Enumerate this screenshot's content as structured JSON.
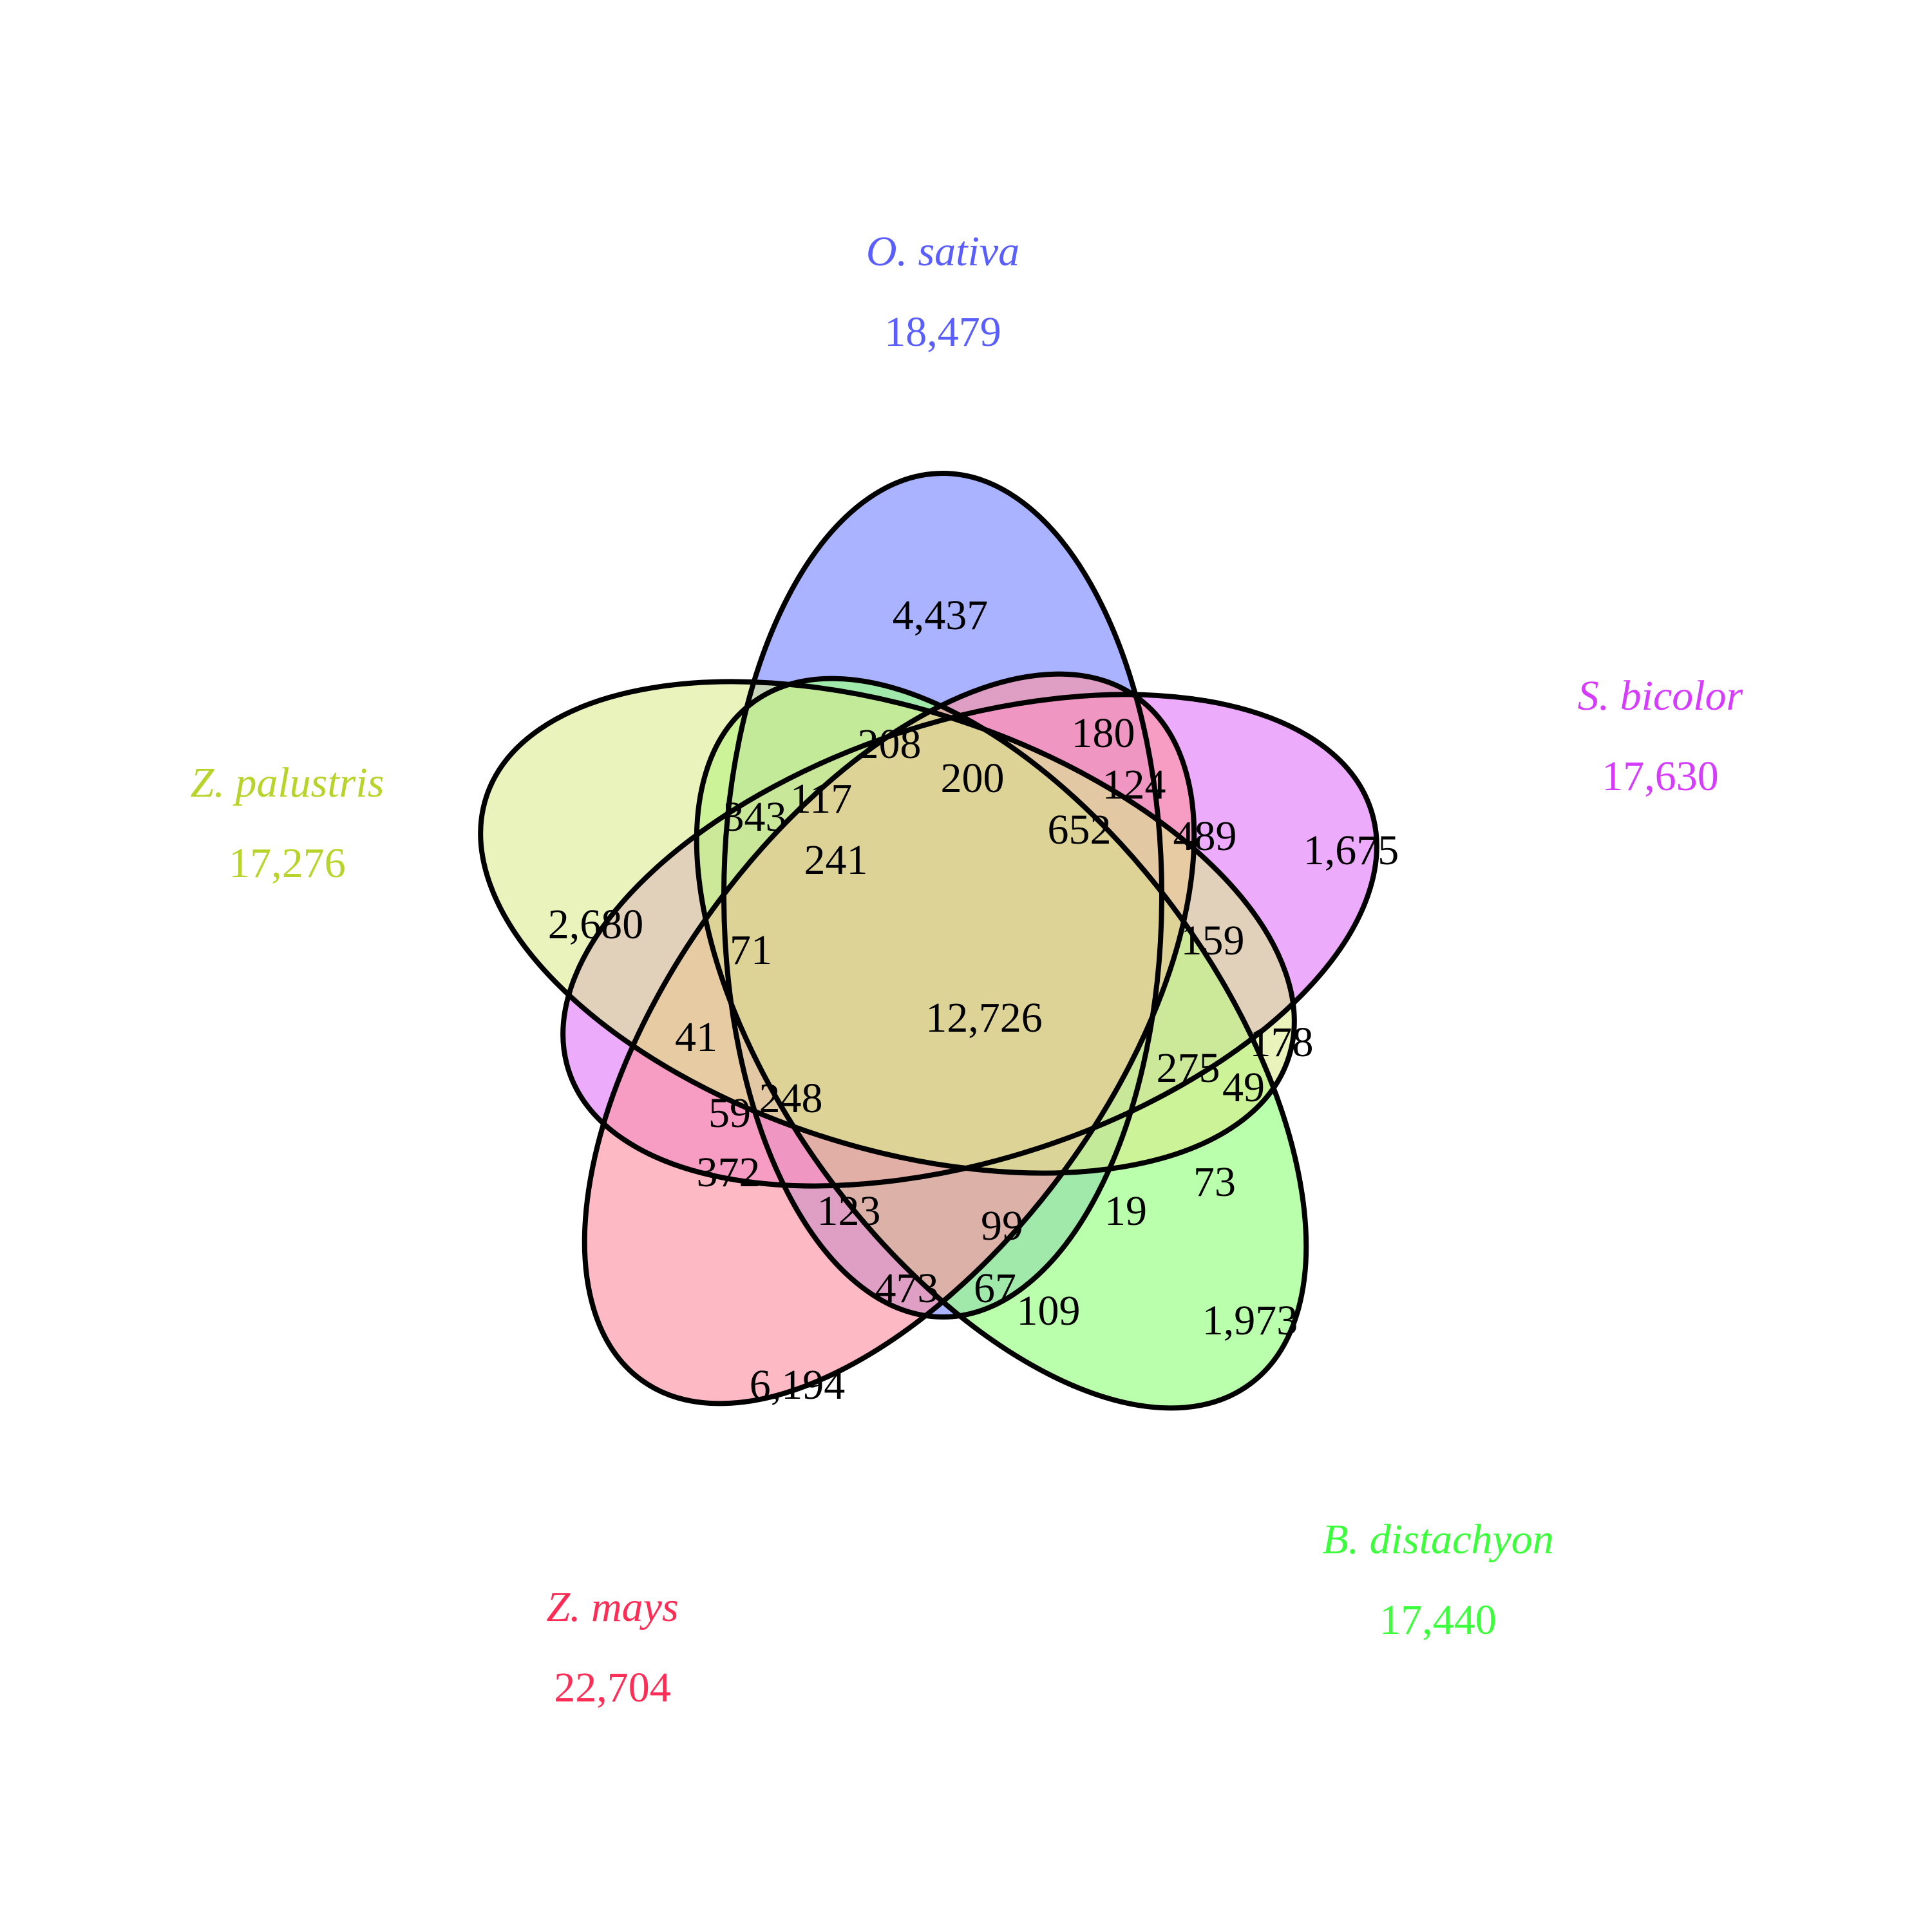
{
  "sets": [
    {
      "id": "osativa",
      "name": "O. sativa",
      "total": "18,479",
      "color": "#5a5eff"
    },
    {
      "id": "sbicolor",
      "name": "S. bicolor",
      "total": "17,630",
      "color": "#d63cff"
    },
    {
      "id": "bdistachyon",
      "name": "B. distachyon",
      "total": "17,440",
      "color": "#3cff3c"
    },
    {
      "id": "zmays",
      "name": "Z. mays",
      "total": "22,704",
      "color": "#ff2d55"
    },
    {
      "id": "zpalustris",
      "name": "Z. palustris",
      "total": "17,276",
      "color": "#b8d42a"
    }
  ],
  "fills": {
    "osativa": "#aab3ff",
    "sbicolor": "#e894fb",
    "bdistachyon": "#9cff88",
    "zmays": "#fc93a5",
    "zpalustris": "#dbeb8d"
  },
  "regions": [
    {
      "id": "osativa-only",
      "value": "4,437"
    },
    {
      "id": "sbicolor-only",
      "value": "1,675"
    },
    {
      "id": "bdistachyon-only",
      "value": "1,973"
    },
    {
      "id": "zmays-only",
      "value": "6,194"
    },
    {
      "id": "zpalustris-only",
      "value": "2,680"
    },
    {
      "id": "all-five",
      "value": "12,726"
    },
    {
      "id": "r-208",
      "value": "208"
    },
    {
      "id": "r-180",
      "value": "180"
    },
    {
      "id": "r-200",
      "value": "200"
    },
    {
      "id": "r-124",
      "value": "124"
    },
    {
      "id": "r-343",
      "value": "343"
    },
    {
      "id": "r-117",
      "value": "117"
    },
    {
      "id": "r-652",
      "value": "652"
    },
    {
      "id": "r-489",
      "value": "489"
    },
    {
      "id": "r-241",
      "value": "241"
    },
    {
      "id": "r-71",
      "value": "71"
    },
    {
      "id": "r-159",
      "value": "159"
    },
    {
      "id": "r-41",
      "value": "41"
    },
    {
      "id": "r-178",
      "value": "178"
    },
    {
      "id": "r-275",
      "value": "275"
    },
    {
      "id": "r-49",
      "value": "49"
    },
    {
      "id": "r-59",
      "value": "59"
    },
    {
      "id": "r-248",
      "value": "248"
    },
    {
      "id": "r-372",
      "value": "372"
    },
    {
      "id": "r-73",
      "value": "73"
    },
    {
      "id": "r-123",
      "value": "123"
    },
    {
      "id": "r-99",
      "value": "99"
    },
    {
      "id": "r-19",
      "value": "19"
    },
    {
      "id": "r-473",
      "value": "473"
    },
    {
      "id": "r-67",
      "value": "67"
    },
    {
      "id": "r-109",
      "value": "109"
    }
  ]
}
